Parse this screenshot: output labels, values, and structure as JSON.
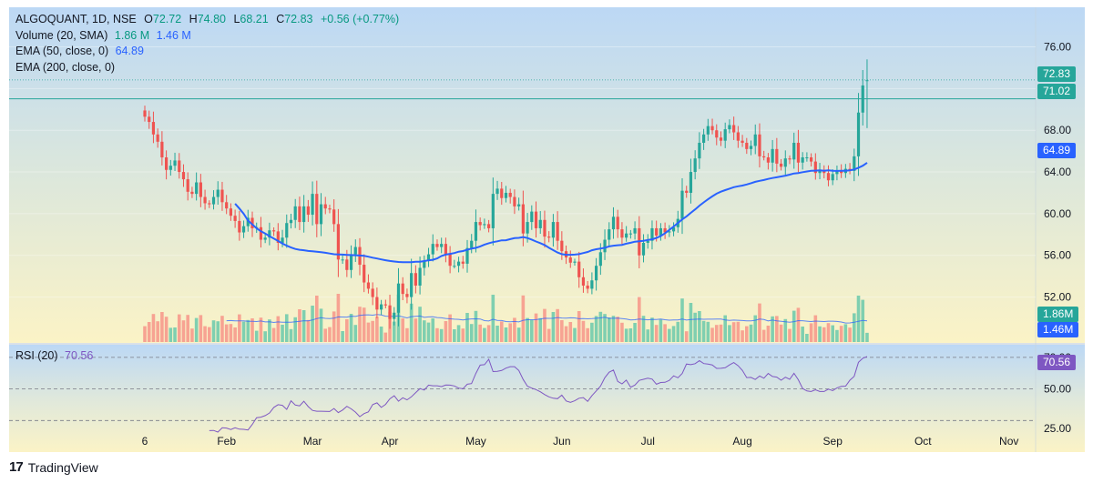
{
  "legend": {
    "symbol_line": "ALGOQUANT, 1D, NSE",
    "open_label": "O",
    "open": "72.72",
    "high_label": "H",
    "high": "74.80",
    "low_label": "L",
    "low": "68.21",
    "close_label": "C",
    "close": "72.83",
    "change": "+0.56 (+0.77%)",
    "volume_label": "Volume (20, SMA)",
    "volume_val1": "1.86 M",
    "volume_val2": "1.46 M",
    "ema50_label": "EMA (50, close, 0)",
    "ema50_val": "64.89",
    "ema200_label": "EMA (200, close, 0)",
    "rsi_label": "RSI (20)",
    "rsi_val": "70.56"
  },
  "badges": {
    "price": "72.83",
    "hline": "71.02",
    "ema50": "64.89",
    "volume": "1.86M",
    "volume_sma": "1.46M",
    "rsi": "70.56"
  },
  "brand": "TradingView",
  "colors": {
    "up": "#26a69a",
    "down": "#ef5350",
    "ema": "#2962ff",
    "rsi": "#7e57c2",
    "vol_up": "#7fcfb0",
    "vol_down": "#f7a392"
  },
  "chart_data": {
    "type": "candlestick",
    "price_ticks": [
      76,
      72,
      68,
      64,
      60,
      56,
      52
    ],
    "price_ticks_labels": [
      "76.00",
      "72.00",
      "68.00",
      "64.00",
      "60.00",
      "56.00",
      "52.00"
    ],
    "price_range": [
      47.6,
      79.8
    ],
    "rsi_ticks": [
      "70.00",
      "50.00",
      "25.00"
    ],
    "rsi_levels": [
      70,
      50,
      30
    ],
    "rsi_range": [
      10,
      78
    ],
    "x_labels": [
      {
        "label": "6",
        "day": 0
      },
      {
        "label": "Feb",
        "day": 19
      },
      {
        "label": "Mar",
        "day": 39
      },
      {
        "label": "Apr",
        "day": 57
      },
      {
        "label": "May",
        "day": 77
      },
      {
        "label": "Jun",
        "day": 97
      },
      {
        "label": "Jul",
        "day": 117
      },
      {
        "label": "Aug",
        "day": 139
      },
      {
        "label": "Sep",
        "day": 160
      },
      {
        "label": "Oct",
        "day": 181
      },
      {
        "label": "Nov",
        "day": 201
      }
    ],
    "horizontal_line": 71.02,
    "last_price": 72.83,
    "closes": [
      69.3,
      68.8,
      67.6,
      66.9,
      65.4,
      64.2,
      64.6,
      65.1,
      64.0,
      63.3,
      62.1,
      61.9,
      63.0,
      61.6,
      61.0,
      60.9,
      61.6,
      62.3,
      61.1,
      60.5,
      59.8,
      59.3,
      58.2,
      58.8,
      59.6,
      58.6,
      58.7,
      57.5,
      57.7,
      58.4,
      58.3,
      57.2,
      57.7,
      59.1,
      59.4,
      60.7,
      59.2,
      60.7,
      59.9,
      61.9,
      59.0,
      60.9,
      60.5,
      60.4,
      59.0,
      55.6,
      55.6,
      54.6,
      56.1,
      56.8,
      55.1,
      53.4,
      52.8,
      52.0,
      50.8,
      51.3,
      51.2,
      49.9,
      50.5,
      53.3,
      52.3,
      52.0,
      54.3,
      53.1,
      54.8,
      55.5,
      56.1,
      57.1,
      56.8,
      57.1,
      56.1,
      55.0,
      55.0,
      55.4,
      55.2,
      56.7,
      57.4,
      59.2,
      58.9,
      59.0,
      58.6,
      61.9,
      62.4,
      61.5,
      62.0,
      61.6,
      60.7,
      60.9,
      58.1,
      59.2,
      60.2,
      58.6,
      59.4,
      57.8,
      57.7,
      59.2,
      57.4,
      56.4,
      55.8,
      55.3,
      55.4,
      53.9,
      53.1,
      52.8,
      53.6,
      55.0,
      56.3,
      57.5,
      58.5,
      59.7,
      58.5,
      57.7,
      58.1,
      58.1,
      58.6,
      56.0,
      57.2,
      57.4,
      58.6,
      57.9,
      58.6,
      58.2,
      58.3,
      58.7,
      59.5,
      62.2,
      62.0,
      64.0,
      65.3,
      66.8,
      67.6,
      68.4,
      68.0,
      67.3,
      67.0,
      68.1,
      68.5,
      67.8,
      67.0,
      66.8,
      66.2,
      66.5,
      67.6,
      65.5,
      65.4,
      64.9,
      66.2,
      64.8,
      64.5,
      65.3,
      65.2,
      66.8,
      64.9,
      65.4,
      65.4,
      65.0,
      63.9,
      64.2,
      63.9,
      63.2,
      63.8,
      64.1,
      63.9,
      64.3,
      64.1,
      65.5,
      69.7,
      72.3,
      72.8
    ],
    "ema50": [
      [
        21,
        60.96
      ],
      [
        22,
        60.5
      ],
      [
        23,
        59.98
      ],
      [
        24,
        59.34
      ],
      [
        25,
        58.96
      ],
      [
        26,
        58.6
      ],
      [
        27,
        58.32
      ],
      [
        28,
        58.1
      ],
      [
        29,
        57.84
      ],
      [
        30,
        57.61
      ],
      [
        31,
        57.38
      ],
      [
        32,
        57.14
      ],
      [
        33,
        56.93
      ],
      [
        34,
        56.75
      ],
      [
        35,
        56.61
      ],
      [
        36,
        56.54
      ],
      [
        37,
        56.49
      ],
      [
        38,
        56.42
      ],
      [
        39,
        56.39
      ],
      [
        40,
        56.35
      ],
      [
        41,
        56.31
      ],
      [
        42,
        56.25
      ],
      [
        43,
        56.18
      ],
      [
        44,
        56.11
      ],
      [
        45,
        56.09
      ],
      [
        46,
        56.07
      ],
      [
        47,
        56.05
      ],
      [
        48,
        56.03
      ],
      [
        49,
        56.01
      ],
      [
        50,
        55.99
      ],
      [
        51,
        55.95
      ],
      [
        52,
        55.87
      ],
      [
        53,
        55.78
      ],
      [
        54,
        55.7
      ],
      [
        55,
        55.61
      ],
      [
        56,
        55.53
      ],
      [
        57,
        55.46
      ],
      [
        58,
        55.41
      ],
      [
        59,
        55.37
      ],
      [
        60,
        55.35
      ],
      [
        61,
        55.34
      ],
      [
        62,
        55.34
      ],
      [
        63,
        55.38
      ],
      [
        64,
        55.39
      ],
      [
        65,
        55.45
      ],
      [
        66,
        55.52
      ],
      [
        67,
        55.58
      ],
      [
        68,
        55.71
      ],
      [
        69,
        55.94
      ],
      [
        70,
        56.07
      ],
      [
        71,
        56.14
      ],
      [
        72,
        56.22
      ],
      [
        73,
        56.35
      ],
      [
        74,
        56.41
      ],
      [
        75,
        56.54
      ],
      [
        76,
        56.65
      ],
      [
        77,
        56.72
      ],
      [
        78,
        56.86
      ],
      [
        79,
        57.03
      ],
      [
        80,
        57.16
      ],
      [
        81,
        57.27
      ],
      [
        82,
        57.35
      ],
      [
        83,
        57.44
      ],
      [
        84,
        57.45
      ],
      [
        85,
        57.56
      ],
      [
        86,
        57.65
      ],
      [
        87,
        57.68
      ],
      [
        88,
        57.75
      ],
      [
        89,
        57.66
      ],
      [
        90,
        57.51
      ],
      [
        91,
        57.33
      ],
      [
        92,
        57.17
      ],
      [
        93,
        56.99
      ],
      [
        94,
        56.73
      ],
      [
        95,
        56.5
      ],
      [
        96,
        56.27
      ],
      [
        97,
        56.12
      ],
      [
        98,
        56.06
      ],
      [
        99,
        56.06
      ],
      [
        100,
        56.07
      ],
      [
        101,
        56.12
      ],
      [
        102,
        56.22
      ],
      [
        103,
        56.33
      ],
      [
        104,
        56.49
      ],
      [
        105,
        56.59
      ],
      [
        106,
        56.65
      ],
      [
        107,
        56.73
      ],
      [
        108,
        56.86
      ],
      [
        109,
        56.93
      ],
      [
        110,
        56.97
      ],
      [
        111,
        57.01
      ],
      [
        112,
        57.12
      ],
      [
        113,
        57.21
      ],
      [
        114,
        57.31
      ],
      [
        115,
        57.35
      ],
      [
        116,
        57.4
      ],
      [
        117,
        57.48
      ],
      [
        118,
        57.54
      ],
      [
        119,
        57.67
      ],
      [
        120,
        57.85
      ],
      [
        121,
        58.12
      ],
      [
        122,
        58.44
      ],
      [
        123,
        58.77
      ],
      [
        124,
        59.11
      ],
      [
        125,
        59.45
      ],
      [
        126,
        59.74
      ],
      [
        127,
        60.08
      ],
      [
        128,
        60.41
      ],
      [
        129,
        60.77
      ],
      [
        130,
        61.08
      ],
      [
        131,
        61.38
      ],
      [
        132,
        61.66
      ],
      [
        133,
        61.92
      ],
      [
        134,
        62.11
      ],
      [
        135,
        62.26
      ],
      [
        136,
        62.4
      ],
      [
        137,
        62.54
      ],
      [
        138,
        62.63
      ],
      [
        139,
        62.7
      ],
      [
        140,
        62.8
      ],
      [
        141,
        62.92
      ],
      [
        142,
        63.05
      ],
      [
        143,
        63.15
      ],
      [
        144,
        63.23
      ],
      [
        145,
        63.33
      ],
      [
        146,
        63.42
      ],
      [
        147,
        63.49
      ],
      [
        148,
        63.57
      ],
      [
        149,
        63.65
      ],
      [
        150,
        63.74
      ],
      [
        151,
        63.86
      ],
      [
        152,
        63.9
      ],
      [
        153,
        63.98
      ],
      [
        154,
        64.05
      ],
      [
        155,
        64.11
      ],
      [
        156,
        64.13
      ],
      [
        157,
        64.15
      ],
      [
        158,
        64.12
      ],
      [
        159,
        64.16
      ],
      [
        160,
        64.12
      ],
      [
        161,
        64.1
      ],
      [
        162,
        64.11
      ],
      [
        163,
        64.11
      ],
      [
        164,
        64.15
      ],
      [
        165,
        64.24
      ],
      [
        166,
        64.41
      ],
      [
        167,
        64.6
      ],
      [
        168,
        64.89
      ]
    ],
    "rsi": [
      [
        15,
        23.6
      ],
      [
        16,
        23.7
      ],
      [
        17,
        22.7
      ],
      [
        18,
        25.4
      ],
      [
        19,
        25.2
      ],
      [
        20,
        24.3
      ],
      [
        21,
        25.4
      ],
      [
        22,
        24.5
      ],
      [
        23,
        24.4
      ],
      [
        24,
        24.0
      ],
      [
        25,
        27.5
      ],
      [
        26,
        31.8
      ],
      [
        27,
        32.1
      ],
      [
        28,
        33.1
      ],
      [
        29,
        34.8
      ],
      [
        30,
        38.3
      ],
      [
        31,
        40.0
      ],
      [
        32,
        39.6
      ],
      [
        33,
        37.0
      ],
      [
        34,
        42.5
      ],
      [
        35,
        39.8
      ],
      [
        36,
        39.3
      ],
      [
        37,
        42.2
      ],
      [
        38,
        38.8
      ],
      [
        39,
        36.4
      ],
      [
        40,
        35.9
      ],
      [
        41,
        35.9
      ],
      [
        42,
        35.8
      ],
      [
        43,
        35.7
      ],
      [
        44,
        37.6
      ],
      [
        45,
        35.0
      ],
      [
        46,
        36.6
      ],
      [
        47,
        39.0
      ],
      [
        48,
        37.4
      ],
      [
        49,
        35.3
      ],
      [
        50,
        32.4
      ],
      [
        51,
        34.4
      ],
      [
        52,
        35.4
      ],
      [
        53,
        40.1
      ],
      [
        54,
        41.2
      ],
      [
        55,
        38.3
      ],
      [
        56,
        40.2
      ],
      [
        57,
        43.7
      ],
      [
        58,
        45.7
      ],
      [
        59,
        42.2
      ],
      [
        60,
        44.4
      ],
      [
        61,
        43.1
      ],
      [
        62,
        45.0
      ],
      [
        63,
        47.7
      ],
      [
        64,
        50.2
      ],
      [
        65,
        49.3
      ],
      [
        66,
        52.4
      ],
      [
        67,
        52.0
      ],
      [
        68,
        52.0
      ],
      [
        69,
        51.5
      ],
      [
        70,
        52.5
      ],
      [
        71,
        52.4
      ],
      [
        72,
        51.9
      ],
      [
        73,
        50.5
      ],
      [
        74,
        50.1
      ],
      [
        75,
        53.0
      ],
      [
        76,
        53.4
      ],
      [
        77,
        59.8
      ],
      [
        78,
        65.1
      ],
      [
        79,
        65.4
      ],
      [
        80,
        68.8
      ],
      [
        81,
        61.0
      ],
      [
        82,
        61.1
      ],
      [
        83,
        61.7
      ],
      [
        84,
        63.2
      ],
      [
        85,
        64.1
      ],
      [
        86,
        64.1
      ],
      [
        87,
        61.7
      ],
      [
        88,
        56.0
      ],
      [
        89,
        51.7
      ],
      [
        90,
        50.5
      ],
      [
        91,
        49.6
      ],
      [
        92,
        48.2
      ],
      [
        93,
        46.4
      ],
      [
        94,
        45.0
      ],
      [
        95,
        44.1
      ],
      [
        96,
        43.8
      ],
      [
        97,
        46.1
      ],
      [
        98,
        42.4
      ],
      [
        99,
        41.5
      ],
      [
        100,
        42.5
      ],
      [
        101,
        44.1
      ],
      [
        102,
        44.5
      ],
      [
        103,
        42.1
      ],
      [
        104,
        45.8
      ],
      [
        105,
        48.7
      ],
      [
        106,
        51.8
      ],
      [
        107,
        57.1
      ],
      [
        108,
        60.6
      ],
      [
        109,
        62.0
      ],
      [
        110,
        54.8
      ],
      [
        111,
        53.2
      ],
      [
        112,
        55.6
      ],
      [
        113,
        51.1
      ],
      [
        114,
        52.5
      ],
      [
        115,
        55.4
      ],
      [
        116,
        56.1
      ],
      [
        117,
        56.8
      ],
      [
        118,
        56.2
      ],
      [
        119,
        53.0
      ],
      [
        120,
        54.1
      ],
      [
        121,
        54.2
      ],
      [
        122,
        55.4
      ],
      [
        123,
        58.3
      ],
      [
        124,
        57.1
      ],
      [
        125,
        59.8
      ],
      [
        126,
        65.8
      ],
      [
        127,
        65.4
      ],
      [
        128,
        66.0
      ],
      [
        129,
        67.9
      ],
      [
        130,
        66.1
      ],
      [
        131,
        65.7
      ],
      [
        132,
        65.2
      ],
      [
        133,
        63.0
      ],
      [
        134,
        63.1
      ],
      [
        135,
        63.4
      ],
      [
        136,
        65.2
      ],
      [
        137,
        66.7
      ],
      [
        138,
        64.7
      ],
      [
        139,
        61.7
      ],
      [
        140,
        57.2
      ],
      [
        141,
        57.3
      ],
      [
        142,
        56.0
      ],
      [
        143,
        58.2
      ],
      [
        144,
        56.8
      ],
      [
        145,
        59.8
      ],
      [
        146,
        57.9
      ],
      [
        147,
        57.5
      ],
      [
        148,
        55.5
      ],
      [
        149,
        57.4
      ],
      [
        150,
        56.1
      ],
      [
        151,
        59.9
      ],
      [
        152,
        55.9
      ],
      [
        153,
        50.3
      ],
      [
        154,
        48.7
      ],
      [
        155,
        48.4
      ],
      [
        156,
        49.5
      ],
      [
        157,
        48.4
      ],
      [
        158,
        48.4
      ],
      [
        159,
        49.9
      ],
      [
        160,
        48.9
      ],
      [
        161,
        50.7
      ],
      [
        162,
        51.6
      ],
      [
        163,
        51.8
      ],
      [
        164,
        55.5
      ],
      [
        165,
        58.0
      ],
      [
        166,
        66.9
      ],
      [
        167,
        69.4
      ],
      [
        168,
        70.56
      ]
    ],
    "volume_sma_note": "1.46M",
    "volume_last": "1.86M"
  }
}
